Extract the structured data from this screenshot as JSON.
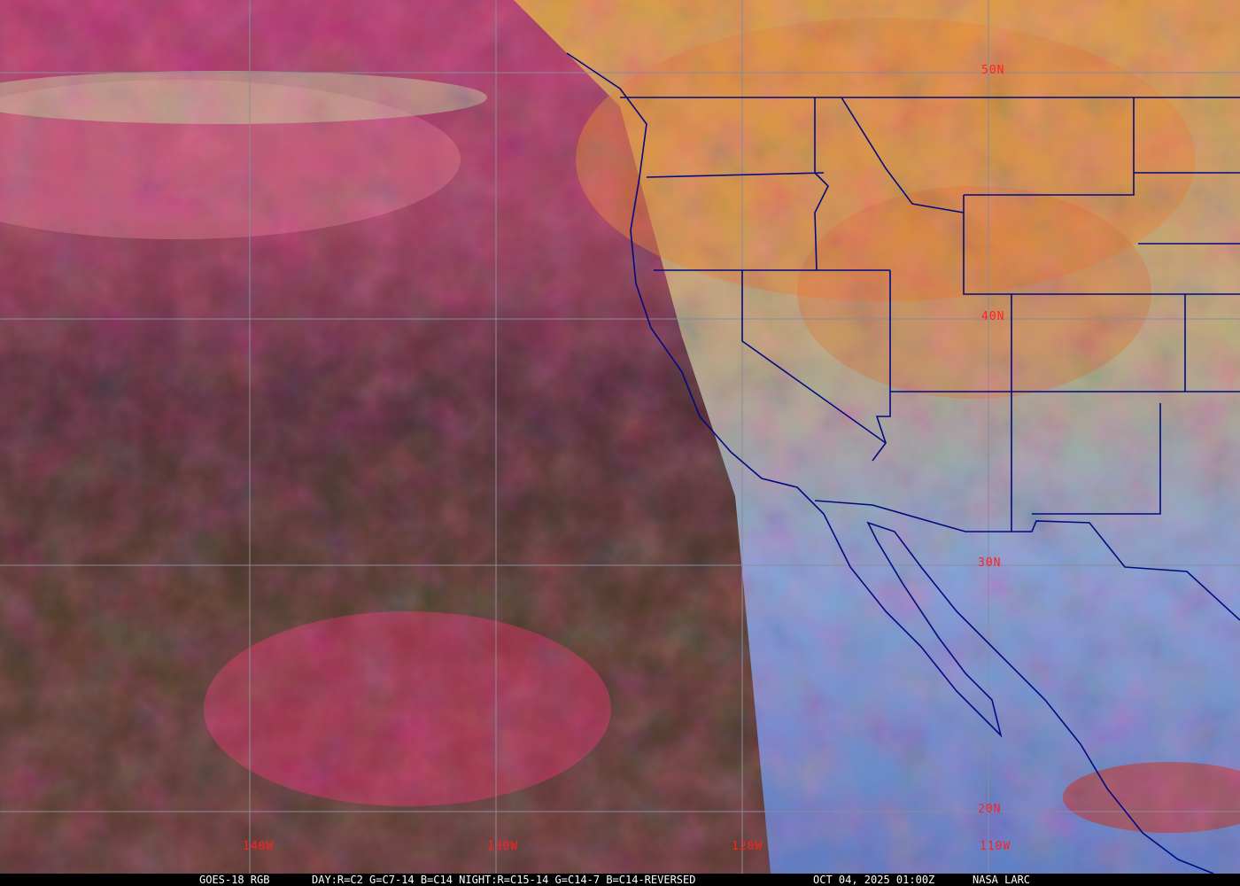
{
  "map": {
    "satellite": "GOES-18 RGB",
    "product": "DAY:R=C2 G=C7-14 B=C14 NIGHT:R=C15-14 G=C14-7 B=C14-REVERSED",
    "timestamp": "OCT 04, 2025 01:00Z",
    "credit": "NASA LARC",
    "longitude_labels": [
      "140W",
      "130W",
      "120W",
      "110W"
    ],
    "latitude_labels": [
      "50N",
      "40N",
      "30N",
      "20N"
    ],
    "colors": {
      "grid": "#8a8a9a",
      "boundaries": "#000a80",
      "labels": "#ff2020",
      "night_magenta": "#c0305a",
      "day_ocean": "#6f9fd8",
      "land_orange": "#e49a30"
    }
  }
}
